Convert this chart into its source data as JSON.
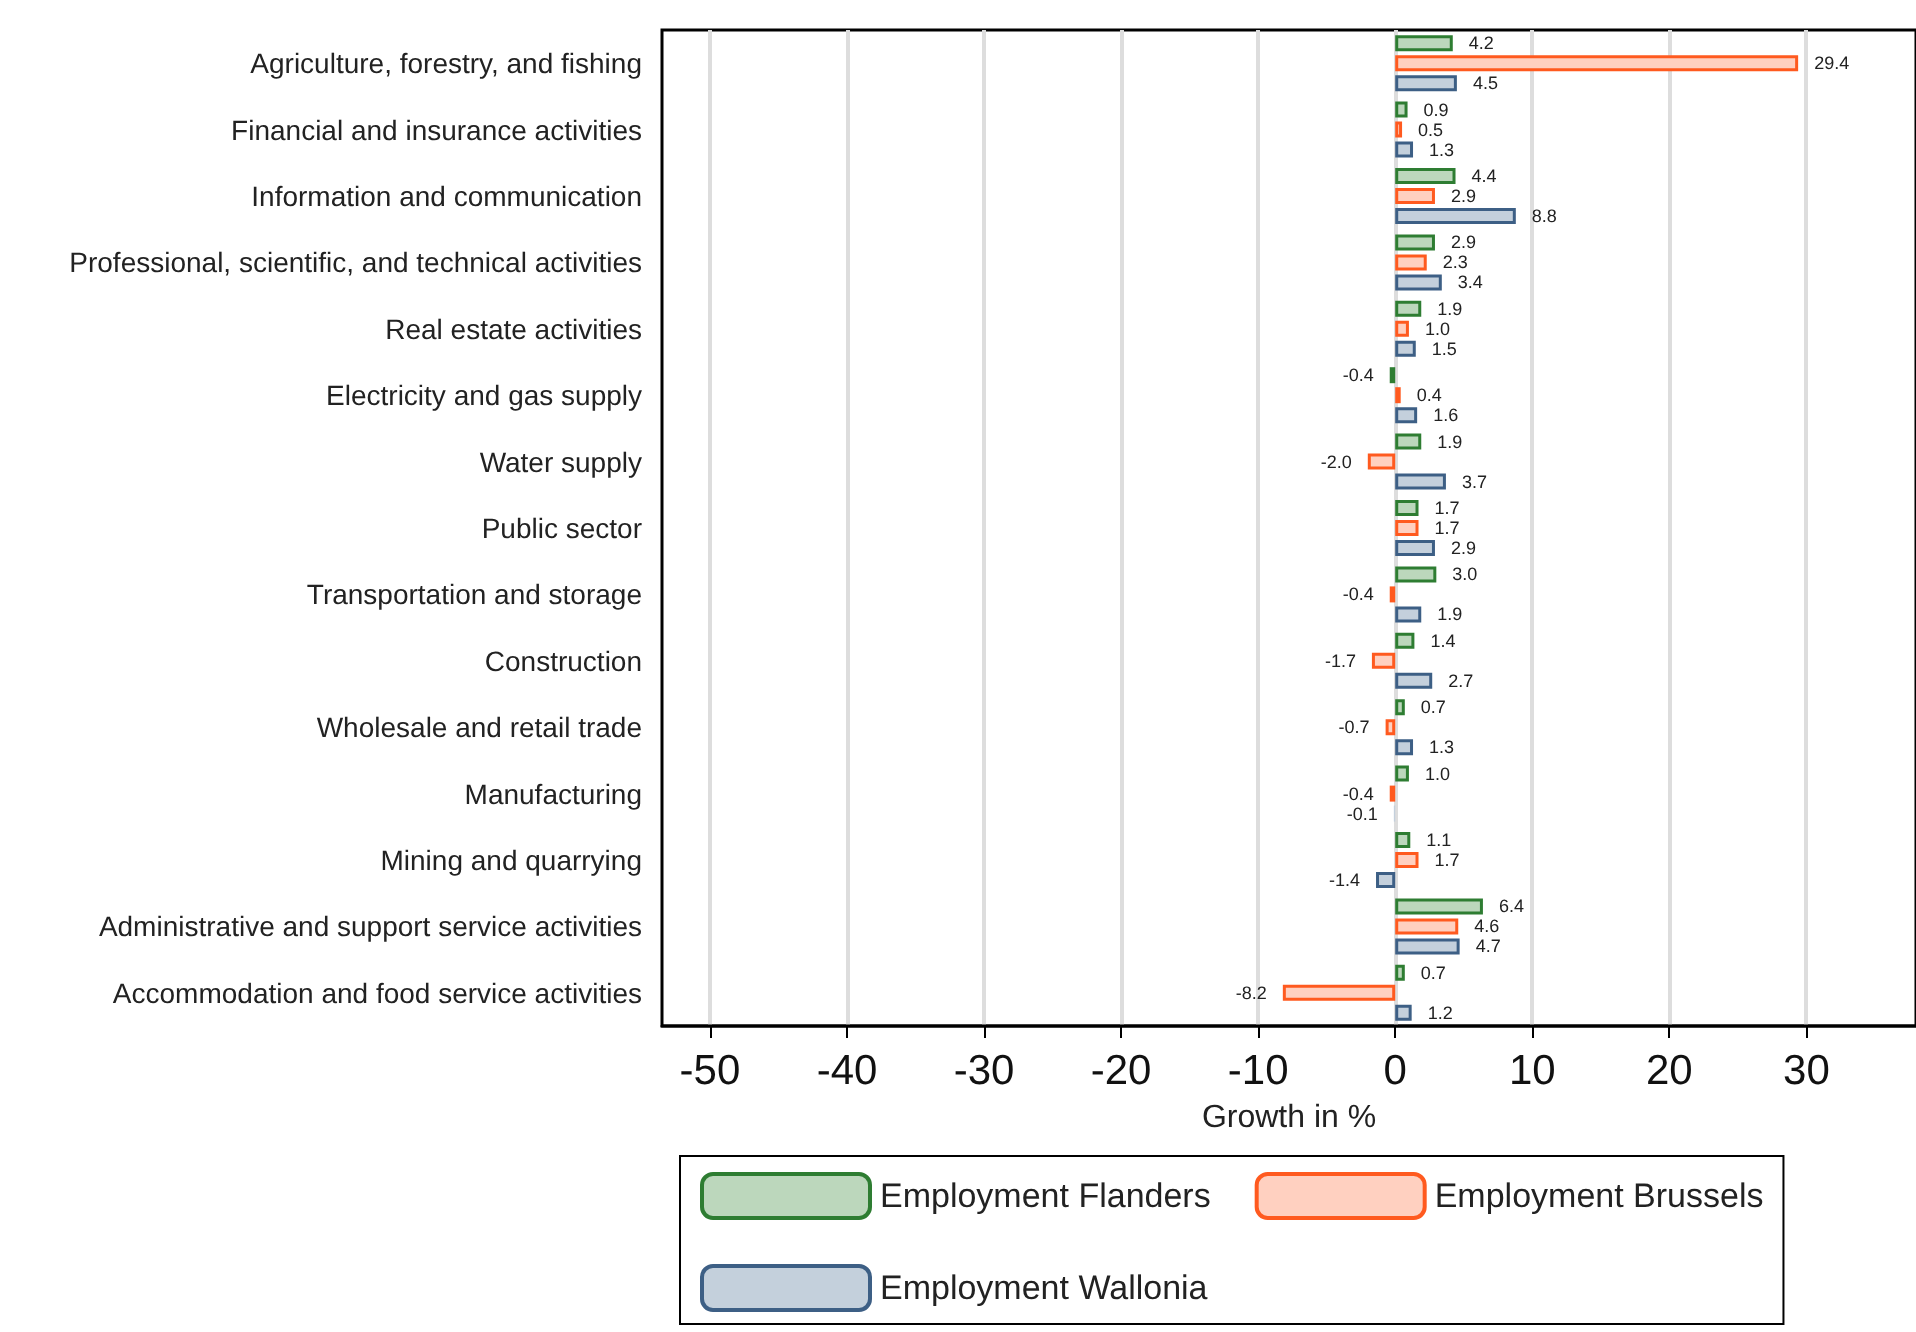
{
  "chart_data": {
    "type": "bar",
    "orientation": "horizontal",
    "xlabel": "Growth in %",
    "categories": [
      "Agriculture, forestry, and fishing",
      "Financial and insurance activities",
      "Information and communication",
      "Professional, scientific, and technical activities",
      "Real estate activities",
      "Electricity and gas supply",
      "Water supply",
      "Public sector",
      "Transportation and storage",
      "Construction",
      "Wholesale and retail trade",
      "Manufacturing",
      "Mining and quarrying",
      "Administrative and support service activities",
      "Accommodation and food service activities"
    ],
    "series": [
      {
        "name": "Employment Flanders",
        "color": "#bcd7bc",
        "values": [
          4.2,
          0.9,
          4.4,
          2.9,
          1.9,
          -0.4,
          1.9,
          1.7,
          3.0,
          1.4,
          0.7,
          1.0,
          1.1,
          6.4,
          0.7
        ],
        "value_labels": [
          "4.2",
          "0.9",
          "4.4",
          "2.9",
          "1.9",
          "-0.4",
          "1.9",
          "1.7",
          "3.0",
          "1.4",
          "0.7",
          "1.0",
          "1.1",
          "6.4",
          "0.7"
        ]
      },
      {
        "name": "Employment Brussels",
        "color": "#ffd0c0",
        "values": [
          29.4,
          0.5,
          2.9,
          2.3,
          1.0,
          0.4,
          -2.0,
          1.7,
          -0.4,
          -1.7,
          -0.7,
          -0.4,
          1.7,
          4.6,
          -8.2
        ],
        "value_labels": [
          "29.4",
          "0.5",
          "2.9",
          "2.3",
          "1.0",
          "0.4",
          "-2.0",
          "1.7",
          "-0.4",
          "-1.7",
          "-0.7",
          "-0.4",
          "1.7",
          "4.6",
          "-8.2"
        ]
      },
      {
        "name": "Employment Wallonia",
        "color": "#c4d0dc",
        "values": [
          4.5,
          1.3,
          8.8,
          3.4,
          1.5,
          1.6,
          3.7,
          2.9,
          1.9,
          2.7,
          1.3,
          -0.1,
          -1.4,
          4.7,
          1.2
        ],
        "value_labels": [
          "4.5",
          "1.3",
          "8.8",
          "3.4",
          "1.5",
          "1.6",
          "3.7",
          "2.9",
          "1.9",
          "2.7",
          "1.3",
          "-0.1",
          "-1.4",
          "4.7",
          "1.2"
        ]
      }
    ],
    "xlim": [
      -53.5,
      38
    ],
    "xticks": [
      -50,
      -40,
      -30,
      -20,
      -10,
      0,
      10,
      20,
      30
    ],
    "grid": "x",
    "legend": "bottom"
  }
}
